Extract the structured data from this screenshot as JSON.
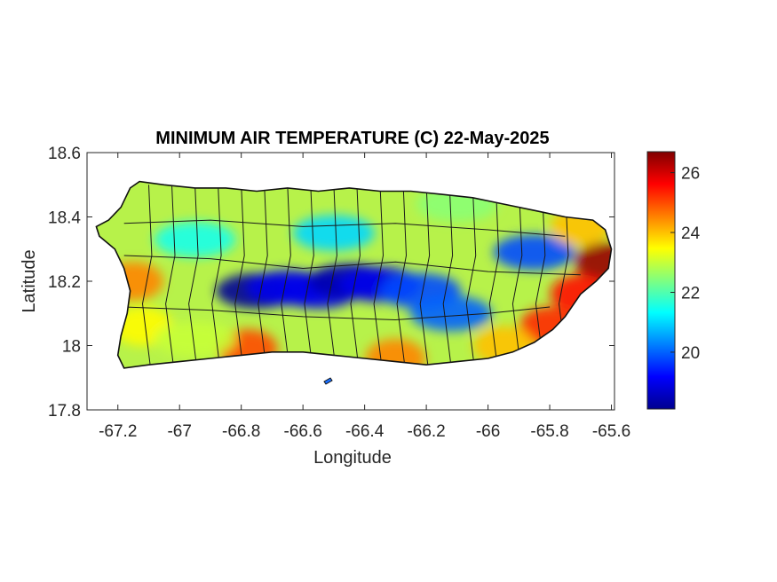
{
  "title": "MINIMUM AIR TEMPERATURE (C) 22-May-2025",
  "xlabel": "Longitude",
  "ylabel": "Latitude",
  "x_ticks": [
    {
      "value": -67.2,
      "label": "-67.2"
    },
    {
      "value": -67.0,
      "label": "-67"
    },
    {
      "value": -66.8,
      "label": "-66.8"
    },
    {
      "value": -66.6,
      "label": "-66.6"
    },
    {
      "value": -66.4,
      "label": "-66.4"
    },
    {
      "value": -66.2,
      "label": "-66.2"
    },
    {
      "value": -66.0,
      "label": "-66"
    },
    {
      "value": -65.8,
      "label": "-65.8"
    },
    {
      "value": -65.6,
      "label": "-65.6"
    }
  ],
  "y_ticks": [
    {
      "value": 17.8,
      "label": "17.8"
    },
    {
      "value": 18.0,
      "label": "18"
    },
    {
      "value": 18.2,
      "label": "18.2"
    },
    {
      "value": 18.4,
      "label": "18.4"
    },
    {
      "value": 18.6,
      "label": "18.6"
    }
  ],
  "colorbar": {
    "min": 18.1,
    "max": 26.7,
    "ticks": [
      {
        "value": 20,
        "label": "20"
      },
      {
        "value": 22,
        "label": "22"
      },
      {
        "value": 24,
        "label": "24"
      },
      {
        "value": 26,
        "label": "26"
      }
    ],
    "colormap": "jet"
  },
  "chart_data": {
    "type": "heatmap",
    "title": "MINIMUM AIR TEMPERATURE (C) 22-May-2025",
    "xlabel": "Longitude",
    "ylabel": "Latitude",
    "xlim": [
      -67.3,
      -65.59
    ],
    "ylim": [
      17.8,
      18.6
    ],
    "color_range": [
      18.1,
      26.7
    ],
    "colormap": "jet",
    "island_outline": [
      [
        -67.27,
        18.37
      ],
      [
        -67.23,
        18.39
      ],
      [
        -67.19,
        18.43
      ],
      [
        -67.16,
        18.49
      ],
      [
        -67.13,
        18.51
      ],
      [
        -67.05,
        18.5
      ],
      [
        -66.95,
        18.49
      ],
      [
        -66.85,
        18.49
      ],
      [
        -66.75,
        18.48
      ],
      [
        -66.65,
        18.49
      ],
      [
        -66.55,
        18.48
      ],
      [
        -66.45,
        18.49
      ],
      [
        -66.35,
        18.48
      ],
      [
        -66.25,
        18.48
      ],
      [
        -66.15,
        18.47
      ],
      [
        -66.05,
        18.46
      ],
      [
        -65.95,
        18.44
      ],
      [
        -65.85,
        18.42
      ],
      [
        -65.75,
        18.4
      ],
      [
        -65.66,
        18.39
      ],
      [
        -65.62,
        18.36
      ],
      [
        -65.6,
        18.3
      ],
      [
        -65.61,
        18.24
      ],
      [
        -65.65,
        18.2
      ],
      [
        -65.7,
        18.16
      ],
      [
        -65.75,
        18.09
      ],
      [
        -65.79,
        18.05
      ],
      [
        -65.85,
        18.01
      ],
      [
        -65.92,
        17.98
      ],
      [
        -66.0,
        17.96
      ],
      [
        -66.1,
        17.95
      ],
      [
        -66.2,
        17.94
      ],
      [
        -66.3,
        17.95
      ],
      [
        -66.4,
        17.96
      ],
      [
        -66.5,
        17.97
      ],
      [
        -66.6,
        17.98
      ],
      [
        -66.7,
        17.98
      ],
      [
        -66.8,
        17.97
      ],
      [
        -66.9,
        17.96
      ],
      [
        -67.0,
        17.95
      ],
      [
        -67.1,
        17.94
      ],
      [
        -67.18,
        17.93
      ],
      [
        -67.2,
        17.97
      ],
      [
        -67.19,
        18.03
      ],
      [
        -67.17,
        18.1
      ],
      [
        -67.16,
        18.17
      ],
      [
        -67.18,
        18.24
      ],
      [
        -67.21,
        18.3
      ],
      [
        -67.26,
        18.34
      ]
    ],
    "temperature_centers": [
      {
        "lon": -66.75,
        "lat": 18.17,
        "temp": 18.3
      },
      {
        "lon": -66.65,
        "lat": 18.18,
        "temp": 19.0
      },
      {
        "lon": -66.55,
        "lat": 18.17,
        "temp": 19.0
      },
      {
        "lon": -66.45,
        "lat": 18.2,
        "temp": 18.5
      },
      {
        "lon": -66.35,
        "lat": 18.19,
        "temp": 19.0
      },
      {
        "lon": -66.22,
        "lat": 18.17,
        "temp": 19.8
      },
      {
        "lon": -66.12,
        "lat": 18.1,
        "temp": 20.0
      },
      {
        "lon": -65.85,
        "lat": 18.29,
        "temp": 19.8
      },
      {
        "lon": -66.5,
        "lat": 18.35,
        "temp": 21.0
      },
      {
        "lon": -66.95,
        "lat": 18.33,
        "temp": 21.5
      },
      {
        "lon": -67.15,
        "lat": 18.2,
        "temp": 24.5
      },
      {
        "lon": -65.62,
        "lat": 18.26,
        "temp": 26.5
      },
      {
        "lon": -65.7,
        "lat": 18.16,
        "temp": 25.5
      },
      {
        "lon": -65.8,
        "lat": 18.06,
        "temp": 25.3
      },
      {
        "lon": -65.95,
        "lat": 18.0,
        "temp": 24.0
      },
      {
        "lon": -66.3,
        "lat": 17.96,
        "temp": 24.5
      },
      {
        "lon": -66.78,
        "lat": 17.99,
        "temp": 25.0
      },
      {
        "lon": -67.12,
        "lat": 18.06,
        "temp": 23.5
      },
      {
        "lon": -66.95,
        "lat": 18.02,
        "temp": 23.0
      },
      {
        "lon": -66.1,
        "lat": 18.44,
        "temp": 22.5
      },
      {
        "lon": -65.7,
        "lat": 18.37,
        "temp": 24.0
      }
    ]
  }
}
